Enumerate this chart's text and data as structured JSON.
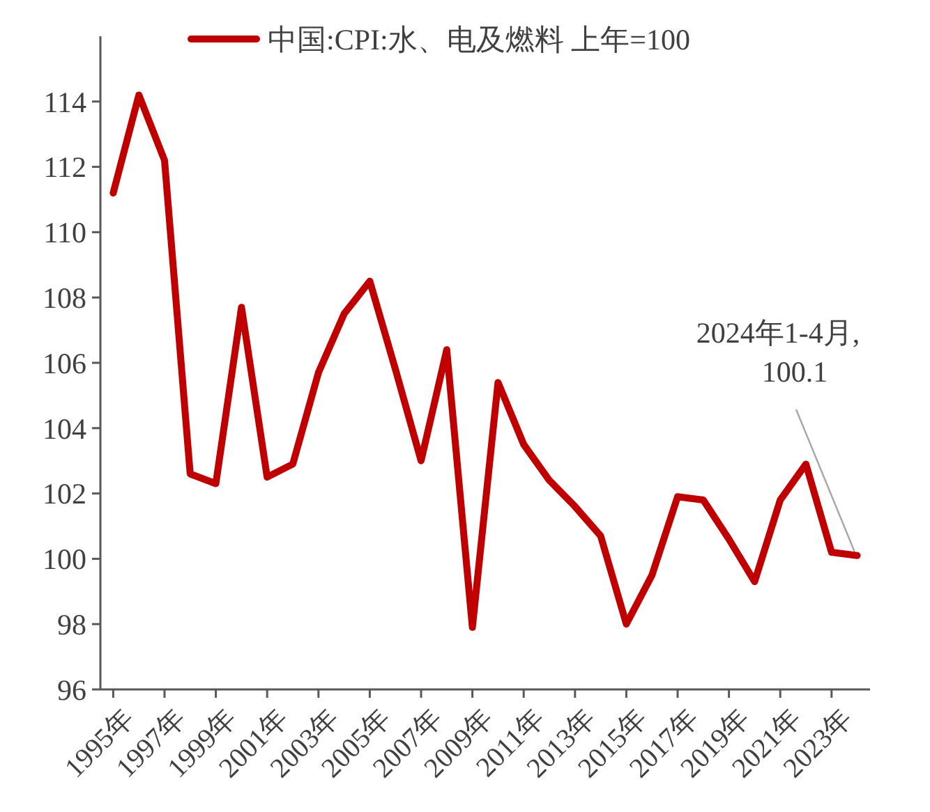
{
  "chart_data": {
    "type": "line",
    "x": [
      1995,
      1996,
      1997,
      1998,
      1999,
      2000,
      2001,
      2002,
      2003,
      2004,
      2005,
      2006,
      2007,
      2008,
      2009,
      2010,
      2011,
      2012,
      2013,
      2014,
      2015,
      2016,
      2017,
      2018,
      2019,
      2020,
      2021,
      2022,
      2023,
      2024
    ],
    "xlim": [
      1994.5,
      2024.5
    ],
    "xticks": [
      {
        "value": 1995,
        "label": "1995年"
      },
      {
        "value": 1997,
        "label": "1997年"
      },
      {
        "value": 1999,
        "label": "1999年"
      },
      {
        "value": 2001,
        "label": "2001年"
      },
      {
        "value": 2003,
        "label": "2003年"
      },
      {
        "value": 2005,
        "label": "2005年"
      },
      {
        "value": 2007,
        "label": "2007年"
      },
      {
        "value": 2009,
        "label": "2009年"
      },
      {
        "value": 2011,
        "label": "2011年"
      },
      {
        "value": 2013,
        "label": "2013年"
      },
      {
        "value": 2015,
        "label": "2015年"
      },
      {
        "value": 2017,
        "label": "2017年"
      },
      {
        "value": 2019,
        "label": "2019年"
      },
      {
        "value": 2021,
        "label": "2021年"
      },
      {
        "value": 2023,
        "label": "2023年"
      }
    ],
    "series": [
      {
        "name": "中国:CPI:水、电及燃料 上年=100",
        "color": "#c00000",
        "values": [
          111.2,
          114.2,
          112.2,
          102.6,
          102.3,
          107.7,
          102.5,
          102.9,
          105.7,
          107.5,
          108.5,
          105.8,
          103.0,
          106.4,
          97.9,
          105.4,
          103.5,
          102.4,
          101.6,
          100.7,
          98.0,
          99.5,
          101.9,
          101.8,
          100.6,
          99.3,
          101.8,
          102.9,
          100.2,
          100.1
        ]
      }
    ],
    "ylim": [
      96,
      116
    ],
    "yticks": [
      96,
      98,
      100,
      102,
      104,
      106,
      108,
      110,
      112,
      114
    ],
    "legend": "top",
    "grid": false,
    "annotations": [
      {
        "text": "2024年1-4月,\n100.1",
        "x": 2024,
        "y": 100.1
      }
    ]
  }
}
